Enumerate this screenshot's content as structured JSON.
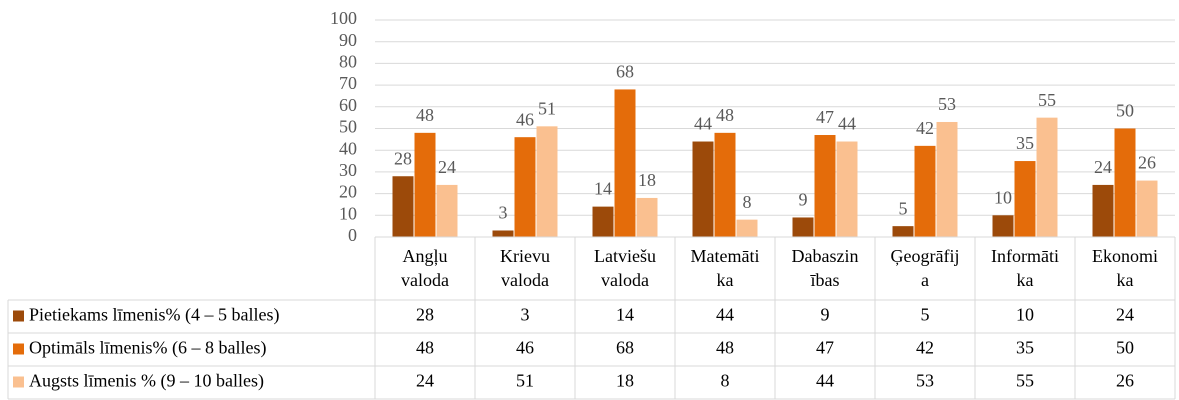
{
  "chart_data": {
    "type": "bar",
    "categories": [
      [
        "Angļu",
        "valoda"
      ],
      [
        "Krievu",
        "valoda"
      ],
      [
        "Latviešu",
        "valoda"
      ],
      [
        "Matemāti",
        "ka"
      ],
      [
        "Dabaszin",
        "ības"
      ],
      [
        "Ģeogrāfij",
        "a"
      ],
      [
        "Informāti",
        "ka"
      ],
      [
        "Ekonomi",
        "ka"
      ]
    ],
    "series": [
      {
        "name": "Pietiekams līmenis% (4 – 5 balles)",
        "color": "#9c4a0a",
        "values": [
          28,
          3,
          14,
          44,
          9,
          5,
          10,
          24
        ]
      },
      {
        "name": "Optimāls līmenis% (6 – 8 balles)",
        "color": "#e46c0a",
        "values": [
          48,
          46,
          68,
          48,
          47,
          42,
          35,
          50
        ]
      },
      {
        "name": "Augsts līmenis % (9 – 10 balles)",
        "color": "#fac090",
        "values": [
          24,
          51,
          18,
          8,
          44,
          53,
          55,
          26
        ]
      }
    ],
    "ylim": [
      0,
      100
    ],
    "yticks": [
      0,
      10,
      20,
      30,
      40,
      50,
      60,
      70,
      80,
      90,
      100
    ],
    "grid": true,
    "data_table": true
  }
}
